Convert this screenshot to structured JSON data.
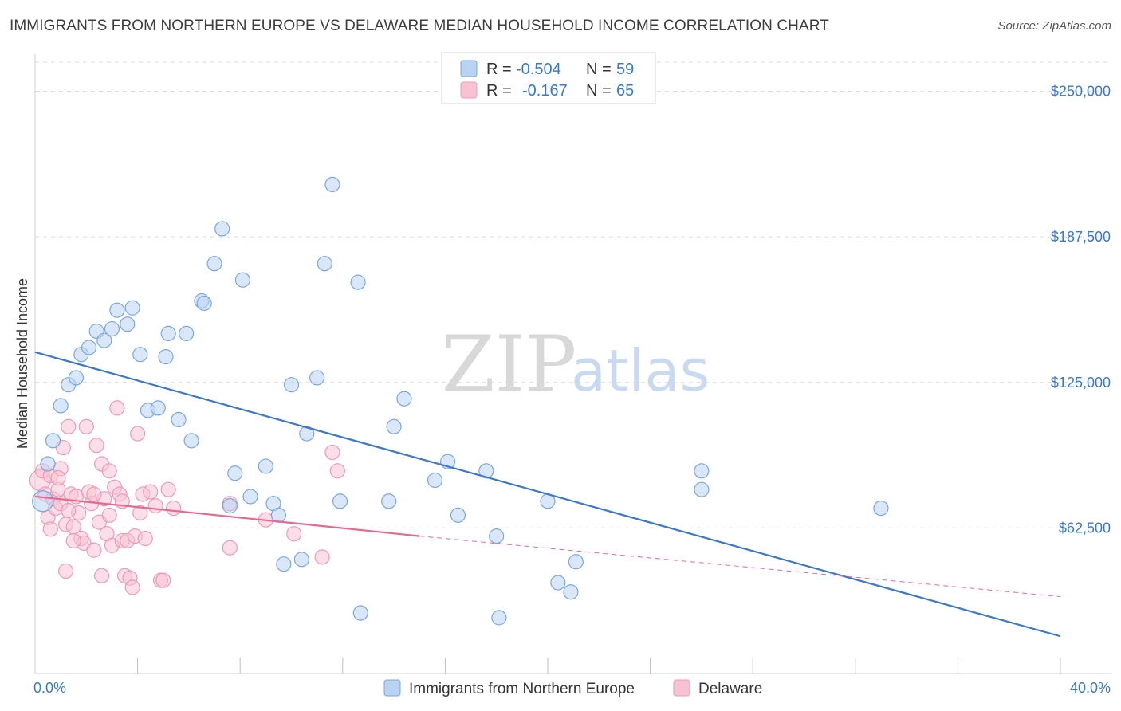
{
  "title": "IMMIGRANTS FROM NORTHERN EUROPE VS DELAWARE MEDIAN HOUSEHOLD INCOME CORRELATION CHART",
  "source": "Source: ZipAtlas.com",
  "watermark": {
    "zip": "ZIP",
    "atlas": "atlas"
  },
  "colors": {
    "blue": "#3b78c9",
    "blue_fill": "#b9d3f2",
    "pink": "#e8678f",
    "pink_fill": "#f7c3d3",
    "grid": "#dcdcdc"
  },
  "legend": {
    "r_label": "R =",
    "n_label": "N =",
    "rows": [
      {
        "r": "-0.504",
        "n": "59"
      },
      {
        "r": "-0.167",
        "n": "65"
      }
    ]
  },
  "chart_data": {
    "type": "scatter",
    "title": "IMMIGRANTS FROM NORTHERN EUROPE VS DELAWARE MEDIAN HOUSEHOLD INCOME CORRELATION CHART",
    "xlabel": "",
    "ylabel": "Median Household Income",
    "x_tick_labels": [
      "0.0%",
      "40.0%"
    ],
    "y_tick_labels": [
      "$62,500",
      "$125,000",
      "$187,500",
      "$250,000"
    ],
    "y_ticks": [
      62500,
      125000,
      187500,
      250000
    ],
    "xlim": [
      0,
      40
    ],
    "ylim": [
      0,
      262500
    ],
    "grid": true,
    "legend_position": "top-center",
    "series": [
      {
        "name": "Immigrants from Northern Europe",
        "color": "#3b78c9",
        "trend": {
          "x0": 0,
          "y0": 138000,
          "x1": 40,
          "y1": 16000
        },
        "points": [
          [
            0.3,
            74000
          ],
          [
            0.5,
            90000
          ],
          [
            0.7,
            100000
          ],
          [
            1.0,
            115000
          ],
          [
            1.3,
            124000
          ],
          [
            1.6,
            127000
          ],
          [
            1.8,
            137000
          ],
          [
            2.1,
            140000
          ],
          [
            2.4,
            147000
          ],
          [
            2.7,
            143000
          ],
          [
            3.0,
            148000
          ],
          [
            3.2,
            156000
          ],
          [
            3.6,
            150000
          ],
          [
            3.8,
            157000
          ],
          [
            4.1,
            137000
          ],
          [
            4.4,
            113000
          ],
          [
            4.8,
            114000
          ],
          [
            5.1,
            136000
          ],
          [
            5.2,
            146000
          ],
          [
            5.6,
            109000
          ],
          [
            5.9,
            146000
          ],
          [
            6.1,
            100000
          ],
          [
            6.5,
            160000
          ],
          [
            6.6,
            159000
          ],
          [
            7.0,
            176000
          ],
          [
            7.3,
            191000
          ],
          [
            7.6,
            72000
          ],
          [
            7.8,
            86000
          ],
          [
            8.1,
            169000
          ],
          [
            8.4,
            76000
          ],
          [
            9.0,
            89000
          ],
          [
            9.3,
            73000
          ],
          [
            9.5,
            68000
          ],
          [
            9.7,
            47000
          ],
          [
            10.0,
            124000
          ],
          [
            10.4,
            49000
          ],
          [
            10.6,
            103000
          ],
          [
            11.0,
            127000
          ],
          [
            11.3,
            176000
          ],
          [
            11.6,
            210000
          ],
          [
            11.9,
            74000
          ],
          [
            12.6,
            168000
          ],
          [
            12.7,
            26000
          ],
          [
            13.8,
            74000
          ],
          [
            14.0,
            106000
          ],
          [
            14.4,
            118000
          ],
          [
            15.6,
            83000
          ],
          [
            16.1,
            91000
          ],
          [
            16.5,
            68000
          ],
          [
            17.6,
            87000
          ],
          [
            18.0,
            59000
          ],
          [
            18.1,
            24000
          ],
          [
            20.0,
            74000
          ],
          [
            20.4,
            39000
          ],
          [
            20.9,
            35000
          ],
          [
            21.1,
            48000
          ],
          [
            26.0,
            87000
          ],
          [
            26.0,
            79000
          ],
          [
            33.0,
            71000
          ]
        ]
      },
      {
        "name": "Delaware",
        "color": "#e8678f",
        "trend": {
          "x0": 0,
          "y0": 76000,
          "x1": 15,
          "y1": 59000,
          "dash_x1": 40,
          "dash_y1": 33000
        },
        "points": [
          [
            0.2,
            83000
          ],
          [
            0.3,
            87000
          ],
          [
            0.4,
            77000
          ],
          [
            0.5,
            67000
          ],
          [
            0.6,
            85000
          ],
          [
            0.7,
            75000
          ],
          [
            0.8,
            71000
          ],
          [
            0.9,
            79000
          ],
          [
            1.0,
            88000
          ],
          [
            1.1,
            97000
          ],
          [
            1.2,
            64000
          ],
          [
            1.3,
            106000
          ],
          [
            1.4,
            77000
          ],
          [
            1.5,
            63000
          ],
          [
            1.6,
            76000
          ],
          [
            1.7,
            69000
          ],
          [
            1.8,
            58000
          ],
          [
            1.9,
            56000
          ],
          [
            2.0,
            106000
          ],
          [
            2.1,
            78000
          ],
          [
            2.2,
            73000
          ],
          [
            2.3,
            53000
          ],
          [
            2.4,
            98000
          ],
          [
            2.5,
            65000
          ],
          [
            2.6,
            90000
          ],
          [
            2.7,
            75000
          ],
          [
            2.8,
            60000
          ],
          [
            2.9,
            87000
          ],
          [
            3.0,
            55000
          ],
          [
            3.1,
            80000
          ],
          [
            3.2,
            114000
          ],
          [
            3.3,
            77000
          ],
          [
            3.4,
            57000
          ],
          [
            3.5,
            42000
          ],
          [
            3.6,
            57000
          ],
          [
            3.7,
            41000
          ],
          [
            3.8,
            37000
          ],
          [
            3.9,
            59000
          ],
          [
            4.0,
            103000
          ],
          [
            4.1,
            69000
          ],
          [
            4.2,
            77000
          ],
          [
            4.5,
            78000
          ],
          [
            4.7,
            72000
          ],
          [
            4.9,
            40000
          ],
          [
            5.0,
            40000
          ],
          [
            5.2,
            79000
          ],
          [
            5.4,
            71000
          ],
          [
            1.2,
            44000
          ],
          [
            2.6,
            42000
          ],
          [
            1.0,
            73000
          ],
          [
            0.6,
            62000
          ],
          [
            1.5,
            57000
          ],
          [
            2.9,
            68000
          ],
          [
            7.6,
            73000
          ],
          [
            7.6,
            54000
          ],
          [
            9.0,
            66000
          ],
          [
            10.1,
            60000
          ],
          [
            11.2,
            50000
          ],
          [
            11.6,
            95000
          ],
          [
            11.8,
            87000
          ],
          [
            2.3,
            77000
          ],
          [
            4.3,
            58000
          ],
          [
            0.9,
            84000
          ],
          [
            1.3,
            70000
          ],
          [
            3.4,
            74000
          ]
        ]
      }
    ]
  }
}
